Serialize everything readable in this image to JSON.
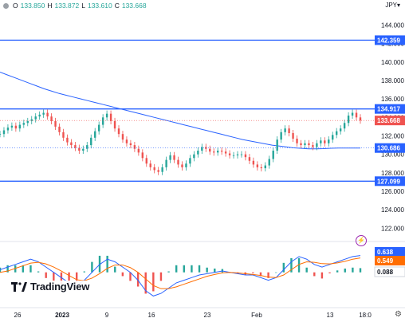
{
  "header": {
    "open_label": "O",
    "open_value": "133.850",
    "high_label": "H",
    "high_value": "133.872",
    "low_label": "L",
    "low_value": "133.610",
    "close_label": "C",
    "close_value": "133.668",
    "currency": "JPY"
  },
  "branding": {
    "logo_text": "TradingView"
  },
  "chart_data": {
    "type": "line",
    "price_axis": {
      "ticks": [
        122,
        124,
        126,
        128,
        130,
        132,
        134,
        136,
        138,
        140,
        142,
        144
      ],
      "tick_labels": [
        "122.000",
        "124.000",
        "126.000",
        "128.000",
        "130.000",
        "132.000",
        "134.000",
        "136.000",
        "138.000",
        "140.000",
        "142.000",
        "144.000"
      ],
      "ylim": [
        121,
        145.5
      ]
    },
    "time_axis": {
      "tick_labels": [
        "26",
        "2023",
        "9",
        "16",
        "23",
        "Feb",
        "13",
        "18:0"
      ]
    },
    "horizontal_levels": [
      {
        "value": 142.359,
        "label": "142.359",
        "color": "#2962ff"
      },
      {
        "value": 134.917,
        "label": "134.917",
        "color": "#2962ff"
      },
      {
        "value": 127.099,
        "label": "127.099",
        "color": "#2962ff"
      }
    ],
    "price_tags": [
      {
        "value": 133.668,
        "label": "133.668",
        "color": "#ef5350"
      },
      {
        "value": 130.686,
        "label": "130.686",
        "color": "#2962ff"
      }
    ],
    "price_series": {
      "name": "close",
      "values": [
        132.2,
        132.6,
        132.9,
        133.1,
        132.8,
        133.2,
        133.4,
        133.6,
        133.8,
        134.1,
        134.3,
        134.5,
        134.1,
        133.6,
        133.0,
        132.4,
        131.8,
        131.3,
        131.0,
        130.7,
        130.4,
        130.6,
        131.0,
        131.8,
        132.5,
        133.2,
        134.0,
        134.4,
        133.6,
        132.8,
        132.2,
        131.6,
        131.2,
        131.0,
        130.6,
        130.2,
        129.6,
        129.0,
        128.6,
        128.3,
        128.1,
        128.6,
        129.4,
        129.9,
        129.4,
        128.9,
        128.6,
        129.0,
        129.6,
        130.0,
        130.4,
        130.8,
        130.6,
        130.3,
        130.2,
        130.4,
        130.3,
        130.1,
        129.9,
        129.9,
        130.0,
        130.0,
        129.7,
        129.3,
        128.9,
        128.6,
        128.5,
        128.8,
        129.5,
        130.4,
        131.6,
        132.4,
        132.8,
        132.3,
        131.7,
        131.2,
        131.0,
        131.2,
        131.0,
        130.8,
        131.2,
        131.5,
        131.2,
        131.6,
        132.1,
        132.5,
        132.8,
        133.4,
        134.2,
        134.5,
        134.0,
        133.67
      ]
    },
    "moving_average": {
      "values": [
        138.9,
        138.6,
        138.3,
        138.0,
        137.7,
        137.4,
        137.1,
        136.85,
        136.6,
        136.4,
        136.2,
        136.0,
        135.8,
        135.6,
        135.4,
        135.2,
        135.0,
        134.8,
        134.6,
        134.4,
        134.2,
        134.0,
        133.8,
        133.6,
        133.4,
        133.2,
        133.0,
        132.8,
        132.6,
        132.4,
        132.2,
        132.0,
        131.8,
        131.6,
        131.45,
        131.3,
        131.15,
        131.0,
        130.9,
        130.8,
        130.7,
        130.65,
        130.6,
        130.6,
        130.62,
        130.66,
        130.686,
        130.686,
        130.686,
        130.686
      ]
    },
    "macd": {
      "ticks": [
        0.088,
        0.549,
        0.638
      ],
      "tick_labels": [
        "0.088",
        "0.549",
        "0.638"
      ],
      "macd_line": [
        0.1,
        0.2,
        0.3,
        0.4,
        0.5,
        0.4,
        0.2,
        0.0,
        -0.2,
        -0.4,
        -0.5,
        -0.3,
        0.0,
        0.3,
        0.5,
        0.4,
        0.2,
        0.0,
        -0.3,
        -0.7,
        -0.9,
        -0.8,
        -0.6,
        -0.4,
        -0.3,
        -0.2,
        -0.1,
        -0.05,
        0.0,
        0.05,
        0.0,
        -0.05,
        -0.1,
        -0.1,
        -0.2,
        -0.3,
        -0.2,
        0.1,
        0.4,
        0.6,
        0.5,
        0.3,
        0.2,
        0.3,
        0.4,
        0.5,
        0.6,
        0.638
      ],
      "signal_line": [
        0.0,
        0.05,
        0.15,
        0.25,
        0.35,
        0.38,
        0.32,
        0.2,
        0.05,
        -0.12,
        -0.28,
        -0.32,
        -0.22,
        -0.05,
        0.15,
        0.28,
        0.28,
        0.18,
        0.0,
        -0.25,
        -0.5,
        -0.62,
        -0.62,
        -0.55,
        -0.45,
        -0.35,
        -0.25,
        -0.15,
        -0.08,
        -0.02,
        0.0,
        -0.02,
        -0.05,
        -0.08,
        -0.12,
        -0.18,
        -0.2,
        -0.1,
        0.1,
        0.3,
        0.4,
        0.38,
        0.33,
        0.32,
        0.36,
        0.42,
        0.5,
        0.549
      ]
    }
  }
}
